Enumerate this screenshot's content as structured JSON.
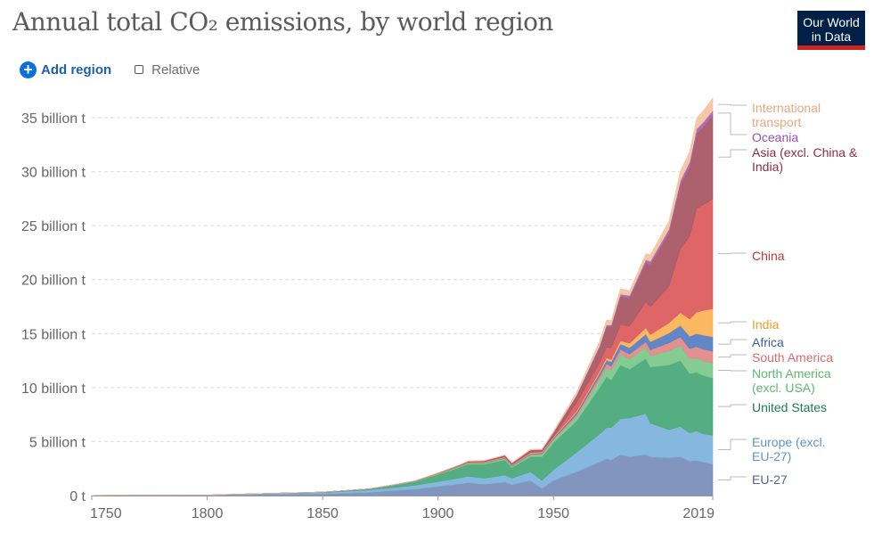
{
  "header": {
    "title": "Annual total CO₂ emissions, by world region",
    "logo_line1": "Our World",
    "logo_line2": "in Data"
  },
  "controls": {
    "add_region_label": "Add region",
    "relative_label": "Relative",
    "relative_checked": false
  },
  "chart_data": {
    "type": "area",
    "stacked": true,
    "title": "Annual total CO₂ emissions, by world region",
    "xlabel": "",
    "ylabel": "",
    "xlim": [
      1750,
      2019
    ],
    "ylim": [
      0,
      35000000000
    ],
    "unit": "tonnes",
    "grid": "horizontal dashed",
    "legend_placement": "right, inline labels",
    "y_ticks": [
      {
        "value": 0,
        "label": "0 t"
      },
      {
        "value": 5000000000,
        "label": "5 billion t"
      },
      {
        "value": 10000000000,
        "label": "10 billion t"
      },
      {
        "value": 15000000000,
        "label": "15 billion t"
      },
      {
        "value": 20000000000,
        "label": "20 billion t"
      },
      {
        "value": 25000000000,
        "label": "25 billion t"
      },
      {
        "value": 30000000000,
        "label": "30 billion t"
      },
      {
        "value": 35000000000,
        "label": "35 billion t"
      }
    ],
    "x_ticks": [
      {
        "value": 1750,
        "label": "1750"
      },
      {
        "value": 1800,
        "label": "1800"
      },
      {
        "value": 1850,
        "label": "1850"
      },
      {
        "value": 1900,
        "label": "1900"
      },
      {
        "value": 1950,
        "label": "1950"
      },
      {
        "value": 2019,
        "label": "2019"
      }
    ],
    "x": [
      1750,
      1800,
      1850,
      1870,
      1880,
      1890,
      1900,
      1910,
      1913,
      1920,
      1929,
      1932,
      1940,
      1945,
      1950,
      1960,
      1970,
      1973,
      1975,
      1979,
      1983,
      1990,
      1992,
      2000,
      2005,
      2009,
      2012,
      2015,
      2019
    ],
    "series_unit": "billion t",
    "series": [
      {
        "name": "EU-27",
        "color": "#7b8fba",
        "values": [
          0.01,
          0.03,
          0.15,
          0.3,
          0.45,
          0.6,
          0.85,
          1.1,
          1.2,
          1.05,
          1.25,
          1.0,
          1.4,
          0.65,
          1.4,
          2.2,
          3.1,
          3.4,
          3.3,
          3.8,
          3.6,
          3.8,
          3.6,
          3.5,
          3.6,
          3.2,
          3.25,
          3.1,
          2.9
        ]
      },
      {
        "name": "Europe (excl. EU-27)",
        "color": "#80b3dd",
        "values": [
          0.01,
          0.02,
          0.12,
          0.22,
          0.28,
          0.35,
          0.45,
          0.55,
          0.6,
          0.55,
          0.65,
          0.6,
          0.8,
          0.75,
          1.0,
          1.8,
          2.6,
          2.9,
          3.0,
          3.3,
          3.6,
          3.8,
          3.1,
          2.6,
          2.8,
          2.6,
          2.75,
          2.6,
          2.7
        ]
      },
      {
        "name": "United States",
        "color": "#4caa7a",
        "values": [
          0.0,
          0.0,
          0.05,
          0.1,
          0.2,
          0.35,
          0.65,
          1.0,
          1.1,
          1.3,
          1.4,
          1.0,
          1.4,
          2.2,
          2.5,
          2.9,
          4.3,
          4.7,
          4.4,
          5.0,
          4.5,
          5.1,
          5.2,
          6.0,
          6.1,
          5.5,
          5.4,
          5.4,
          5.3
        ]
      },
      {
        "name": "North America (excl. USA)",
        "color": "#7dc98b",
        "values": [
          0.0,
          0.0,
          0.0,
          0.01,
          0.02,
          0.03,
          0.05,
          0.08,
          0.09,
          0.1,
          0.12,
          0.1,
          0.15,
          0.2,
          0.25,
          0.4,
          0.75,
          0.85,
          0.9,
          1.0,
          0.95,
          1.05,
          1.05,
          1.3,
          1.4,
          1.35,
          1.35,
          1.35,
          1.4
        ]
      },
      {
        "name": "South America",
        "color": "#e28a8a",
        "values": [
          0.0,
          0.0,
          0.0,
          0.0,
          0.01,
          0.01,
          0.02,
          0.03,
          0.03,
          0.04,
          0.05,
          0.05,
          0.07,
          0.08,
          0.1,
          0.2,
          0.3,
          0.35,
          0.38,
          0.45,
          0.45,
          0.5,
          0.55,
          0.75,
          0.8,
          0.95,
          1.05,
          1.1,
          1.05
        ]
      },
      {
        "name": "Africa",
        "color": "#5b7fc4",
        "values": [
          0.0,
          0.0,
          0.0,
          0.0,
          0.0,
          0.01,
          0.02,
          0.03,
          0.03,
          0.04,
          0.05,
          0.05,
          0.07,
          0.08,
          0.1,
          0.2,
          0.3,
          0.35,
          0.4,
          0.5,
          0.6,
          0.7,
          0.75,
          0.9,
          1.05,
          1.15,
          1.2,
          1.3,
          1.35
        ]
      },
      {
        "name": "India",
        "color": "#fbb457",
        "values": [
          0.0,
          0.0,
          0.0,
          0.0,
          0.01,
          0.01,
          0.02,
          0.03,
          0.04,
          0.04,
          0.05,
          0.05,
          0.07,
          0.08,
          0.07,
          0.12,
          0.18,
          0.2,
          0.22,
          0.3,
          0.4,
          0.6,
          0.65,
          0.95,
          1.2,
          1.6,
          2.0,
          2.3,
          2.6
        ]
      },
      {
        "name": "China",
        "color": "#dd5e5e",
        "values": [
          0.0,
          0.0,
          0.0,
          0.0,
          0.0,
          0.0,
          0.01,
          0.01,
          0.02,
          0.02,
          0.02,
          0.02,
          0.05,
          0.05,
          0.08,
          0.8,
          0.8,
          1.0,
          1.1,
          1.5,
          1.6,
          2.4,
          2.6,
          3.4,
          5.9,
          7.7,
          9.6,
          9.8,
          10.2
        ]
      },
      {
        "name": "Asia (excl. China & India)",
        "color": "#a85864",
        "values": [
          0.0,
          0.0,
          0.0,
          0.0,
          0.0,
          0.01,
          0.02,
          0.05,
          0.06,
          0.08,
          0.12,
          0.12,
          0.2,
          0.15,
          0.3,
          0.6,
          1.4,
          1.9,
          1.9,
          2.6,
          2.6,
          3.6,
          3.9,
          4.9,
          5.9,
          6.4,
          6.9,
          7.2,
          7.7
        ]
      },
      {
        "name": "Oceania",
        "color": "#a667b8",
        "values": [
          0.0,
          0.0,
          0.0,
          0.0,
          0.0,
          0.0,
          0.01,
          0.01,
          0.01,
          0.01,
          0.02,
          0.02,
          0.02,
          0.03,
          0.05,
          0.08,
          0.15,
          0.17,
          0.18,
          0.2,
          0.22,
          0.3,
          0.3,
          0.37,
          0.42,
          0.45,
          0.45,
          0.45,
          0.45
        ]
      },
      {
        "name": "International transport",
        "color": "#f4c4a0",
        "values": [
          0.0,
          0.0,
          0.0,
          0.0,
          0.0,
          0.0,
          0.02,
          0.03,
          0.04,
          0.04,
          0.05,
          0.05,
          0.06,
          0.05,
          0.1,
          0.25,
          0.4,
          0.45,
          0.45,
          0.5,
          0.45,
          0.55,
          0.6,
          0.75,
          0.9,
          0.95,
          1.0,
          1.05,
          1.15
        ]
      }
    ],
    "labels": [
      {
        "series": "International transport",
        "lines": [
          "International",
          "transport"
        ],
        "color": "#e8a87a"
      },
      {
        "series": "Oceania",
        "lines": [
          "Oceania"
        ],
        "color": "#9a4fae"
      },
      {
        "series": "Asia (excl. China & India)",
        "lines": [
          "Asia (excl. China &",
          "India)"
        ],
        "color": "#8e2d43"
      },
      {
        "series": "China",
        "lines": [
          "China"
        ],
        "color": "#b63a3a"
      },
      {
        "series": "India",
        "lines": [
          "India"
        ],
        "color": "#f09b2a"
      },
      {
        "series": "Africa",
        "lines": [
          "Africa"
        ],
        "color": "#3b5ca3"
      },
      {
        "series": "South America",
        "lines": [
          "South America"
        ],
        "color": "#d46f6f"
      },
      {
        "series": "North America (excl. USA)",
        "lines": [
          "North America",
          "(excl. USA)"
        ],
        "color": "#5cb86f"
      },
      {
        "series": "United States",
        "lines": [
          "United States"
        ],
        "color": "#1e7a4e"
      },
      {
        "series": "Europe (excl. EU-27)",
        "lines": [
          "Europe (excl.",
          "EU-27)"
        ],
        "color": "#5b95cc"
      },
      {
        "series": "EU-27",
        "lines": [
          "EU-27"
        ],
        "color": "#4e6399"
      }
    ]
  }
}
